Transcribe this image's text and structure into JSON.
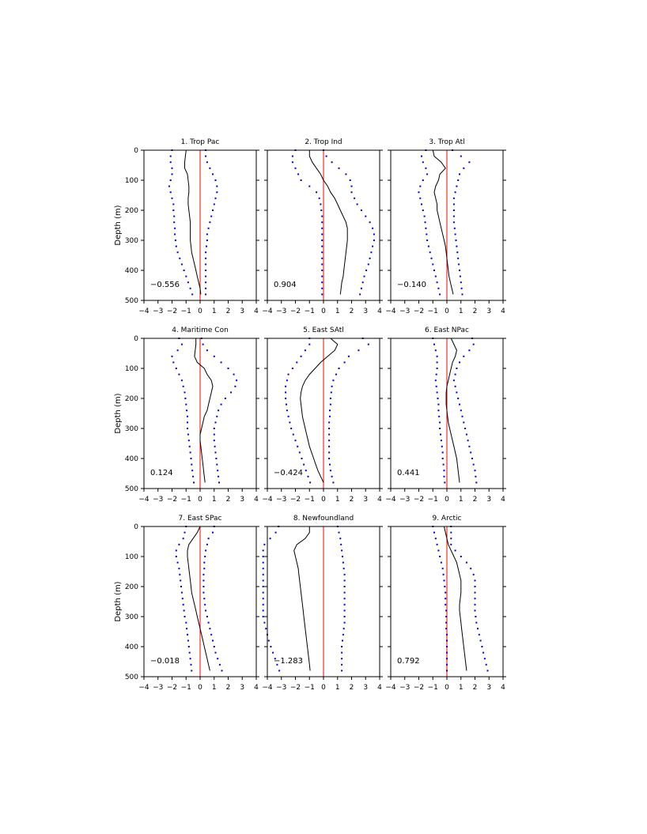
{
  "figure": {
    "ylabel": "Depth (m)",
    "xticks": [
      "−4",
      "−3",
      "−2",
      "−1",
      "0",
      "1",
      "2",
      "3",
      "4"
    ],
    "yticks": [
      "0",
      "100",
      "200",
      "300",
      "400",
      "500"
    ],
    "colors": {
      "mean": "#000000",
      "bounds": "#0000dd",
      "zero": "#ff0000"
    }
  },
  "chart_data": [
    {
      "type": "line",
      "title": "1. Trop Pac",
      "annotation": "−0.556",
      "xlim": [
        -4,
        4
      ],
      "ylim": [
        500,
        0
      ],
      "grid": false,
      "depth": [
        0,
        20,
        40,
        60,
        80,
        100,
        120,
        140,
        160,
        180,
        200,
        220,
        240,
        260,
        280,
        300,
        320,
        340,
        360,
        380,
        400,
        420,
        440,
        460,
        480
      ],
      "series": [
        {
          "role": "mean",
          "x": [
            -1.0,
            -1.05,
            -1.1,
            -1.1,
            -0.9,
            -0.85,
            -0.8,
            -0.8,
            -0.85,
            -0.85,
            -0.8,
            -0.75,
            -0.7,
            -0.7,
            -0.7,
            -0.7,
            -0.65,
            -0.6,
            -0.5,
            -0.4,
            -0.3,
            -0.2,
            -0.1,
            0.0,
            0.05
          ]
        },
        {
          "role": "lower",
          "x": [
            -2.0,
            -2.1,
            -2.1,
            -2.0,
            -2.0,
            -2.1,
            -2.2,
            -2.1,
            -2.0,
            -1.9,
            -1.9,
            -1.85,
            -1.85,
            -1.8,
            -1.8,
            -1.75,
            -1.7,
            -1.6,
            -1.45,
            -1.3,
            -1.15,
            -1.0,
            -0.85,
            -0.7,
            -0.55
          ]
        },
        {
          "role": "upper",
          "x": [
            0.4,
            0.4,
            0.5,
            0.7,
            0.9,
            1.1,
            1.2,
            1.2,
            1.1,
            1.0,
            0.9,
            0.8,
            0.7,
            0.6,
            0.5,
            0.5,
            0.45,
            0.4,
            0.4,
            0.4,
            0.4,
            0.4,
            0.4,
            0.4,
            0.4
          ]
        }
      ]
    },
    {
      "type": "line",
      "title": "2. Trop Ind",
      "annotation": "0.904",
      "xlim": [
        -4,
        4
      ],
      "ylim": [
        500,
        0
      ],
      "grid": false,
      "depth": [
        0,
        20,
        40,
        60,
        80,
        100,
        120,
        140,
        160,
        180,
        200,
        220,
        240,
        260,
        280,
        300,
        320,
        340,
        360,
        380,
        400,
        420,
        440,
        460,
        480
      ],
      "series": [
        {
          "role": "mean",
          "x": [
            -1.0,
            -1.0,
            -0.8,
            -0.5,
            -0.2,
            0.0,
            0.3,
            0.5,
            0.8,
            1.0,
            1.2,
            1.4,
            1.6,
            1.7,
            1.7,
            1.7,
            1.65,
            1.6,
            1.55,
            1.5,
            1.45,
            1.4,
            1.3,
            1.25,
            1.2
          ]
        },
        {
          "role": "lower",
          "x": [
            -2.0,
            -2.2,
            -2.2,
            -2.0,
            -1.8,
            -1.6,
            -1.0,
            -0.5,
            -0.3,
            -0.2,
            -0.15,
            -0.1,
            -0.1,
            -0.1,
            -0.1,
            -0.1,
            -0.1,
            -0.1,
            -0.1,
            -0.1,
            -0.1,
            -0.1,
            -0.1,
            -0.1,
            -0.1
          ]
        },
        {
          "role": "upper",
          "x": [
            0.0,
            0.2,
            0.6,
            1.1,
            1.6,
            1.9,
            2.0,
            2.0,
            2.2,
            2.4,
            2.7,
            3.0,
            3.3,
            3.5,
            3.6,
            3.6,
            3.5,
            3.4,
            3.3,
            3.2,
            3.05,
            2.9,
            2.8,
            2.7,
            2.6
          ]
        }
      ]
    },
    {
      "type": "line",
      "title": "3. Trop Atl",
      "annotation": "−0.140",
      "xlim": [
        -4,
        4
      ],
      "ylim": [
        500,
        0
      ],
      "grid": false,
      "depth": [
        0,
        20,
        40,
        60,
        80,
        100,
        120,
        140,
        160,
        180,
        200,
        220,
        240,
        260,
        280,
        300,
        320,
        340,
        360,
        380,
        400,
        420,
        440,
        460,
        480
      ],
      "series": [
        {
          "role": "mean",
          "x": [
            -1.0,
            -0.9,
            -0.4,
            -0.1,
            -0.5,
            -0.6,
            -0.8,
            -0.9,
            -0.8,
            -0.7,
            -0.7,
            -0.6,
            -0.5,
            -0.4,
            -0.3,
            -0.2,
            -0.1,
            -0.05,
            0.0,
            0.05,
            0.1,
            0.15,
            0.25,
            0.35,
            0.45
          ]
        },
        {
          "role": "lower",
          "x": [
            -1.5,
            -1.8,
            -1.7,
            -1.5,
            -1.4,
            -1.7,
            -1.9,
            -2.0,
            -1.9,
            -1.8,
            -1.7,
            -1.6,
            -1.55,
            -1.5,
            -1.45,
            -1.4,
            -1.3,
            -1.2,
            -1.1,
            -1.0,
            -0.9,
            -0.8,
            -0.7,
            -0.6,
            -0.5
          ]
        },
        {
          "role": "upper",
          "x": [
            0.4,
            1.0,
            1.6,
            1.2,
            0.9,
            0.8,
            0.7,
            0.6,
            0.5,
            0.5,
            0.5,
            0.5,
            0.5,
            0.55,
            0.6,
            0.65,
            0.7,
            0.75,
            0.8,
            0.85,
            0.9,
            0.95,
            1.0,
            1.05,
            1.1
          ]
        }
      ]
    },
    {
      "type": "line",
      "title": "4. Maritime Con",
      "annotation": "0.124",
      "xlim": [
        -4,
        4
      ],
      "ylim": [
        500,
        0
      ],
      "grid": false,
      "depth": [
        0,
        20,
        40,
        60,
        80,
        100,
        120,
        140,
        160,
        180,
        200,
        220,
        240,
        260,
        280,
        300,
        320,
        340,
        360,
        380,
        400,
        420,
        440,
        460,
        480
      ],
      "series": [
        {
          "role": "mean",
          "x": [
            -0.3,
            -0.3,
            -0.35,
            -0.4,
            -0.2,
            0.3,
            0.5,
            0.8,
            0.9,
            0.8,
            0.7,
            0.6,
            0.5,
            0.3,
            0.2,
            0.1,
            0.0,
            0.0,
            0.05,
            0.1,
            0.15,
            0.2,
            0.25,
            0.3,
            0.35
          ]
        },
        {
          "role": "lower",
          "x": [
            -1.5,
            -1.3,
            -1.6,
            -2.0,
            -1.9,
            -1.7,
            -1.5,
            -1.3,
            -1.2,
            -1.1,
            -1.05,
            -1.0,
            -0.95,
            -0.9,
            -0.9,
            -0.9,
            -0.85,
            -0.8,
            -0.75,
            -0.7,
            -0.65,
            -0.6,
            -0.55,
            -0.5,
            -0.45
          ]
        },
        {
          "role": "upper",
          "x": [
            0.1,
            0.2,
            0.5,
            1.0,
            1.5,
            2.0,
            2.4,
            2.6,
            2.5,
            2.2,
            1.8,
            1.5,
            1.3,
            1.2,
            1.1,
            1.0,
            1.0,
            1.0,
            1.05,
            1.1,
            1.15,
            1.2,
            1.25,
            1.3,
            1.35
          ]
        }
      ]
    },
    {
      "type": "line",
      "title": "5. East SAtl",
      "annotation": "−0.424",
      "xlim": [
        -4,
        4
      ],
      "ylim": [
        500,
        0
      ],
      "grid": false,
      "depth": [
        0,
        20,
        40,
        60,
        80,
        100,
        120,
        140,
        160,
        180,
        200,
        220,
        240,
        260,
        280,
        300,
        320,
        340,
        360,
        380,
        400,
        420,
        440,
        460,
        480
      ],
      "series": [
        {
          "role": "mean",
          "x": [
            0.5,
            1.0,
            0.8,
            0.3,
            -0.2,
            -0.6,
            -1.0,
            -1.3,
            -1.5,
            -1.6,
            -1.65,
            -1.6,
            -1.55,
            -1.5,
            -1.4,
            -1.3,
            -1.2,
            -1.1,
            -1.0,
            -0.85,
            -0.7,
            -0.55,
            -0.4,
            -0.2,
            0.0
          ]
        },
        {
          "role": "lower",
          "x": [
            -1.0,
            -1.0,
            -1.3,
            -1.6,
            -1.9,
            -2.2,
            -2.5,
            -2.6,
            -2.7,
            -2.7,
            -2.7,
            -2.65,
            -2.6,
            -2.5,
            -2.4,
            -2.3,
            -2.15,
            -2.0,
            -1.85,
            -1.7,
            -1.55,
            -1.4,
            -1.25,
            -1.1,
            -0.95
          ]
        },
        {
          "role": "upper",
          "x": [
            2.8,
            3.2,
            2.5,
            1.8,
            1.5,
            1.1,
            0.9,
            0.7,
            0.6,
            0.55,
            0.5,
            0.5,
            0.45,
            0.45,
            0.4,
            0.4,
            0.4,
            0.4,
            0.4,
            0.4,
            0.4,
            0.45,
            0.5,
            0.6,
            0.7
          ]
        }
      ]
    },
    {
      "type": "line",
      "title": "6. East NPac",
      "annotation": "0.441",
      "xlim": [
        -4,
        4
      ],
      "ylim": [
        500,
        0
      ],
      "grid": false,
      "depth": [
        0,
        20,
        40,
        60,
        80,
        100,
        120,
        140,
        160,
        180,
        200,
        220,
        240,
        260,
        280,
        300,
        320,
        340,
        360,
        380,
        400,
        420,
        440,
        460,
        480
      ],
      "series": [
        {
          "role": "mean",
          "x": [
            0.3,
            0.5,
            0.7,
            0.6,
            0.4,
            0.3,
            0.2,
            0.1,
            0.0,
            -0.05,
            -0.05,
            -0.05,
            0.0,
            0.05,
            0.1,
            0.2,
            0.3,
            0.4,
            0.5,
            0.6,
            0.7,
            0.75,
            0.8,
            0.85,
            0.9
          ]
        },
        {
          "role": "lower",
          "x": [
            -1.0,
            -0.9,
            -0.8,
            -0.7,
            -0.7,
            -0.7,
            -0.75,
            -0.8,
            -0.75,
            -0.7,
            -0.65,
            -0.6,
            -0.6,
            -0.55,
            -0.5,
            -0.5,
            -0.45,
            -0.4,
            -0.35,
            -0.3,
            -0.3,
            -0.25,
            -0.2,
            -0.2,
            -0.15
          ]
        },
        {
          "role": "upper",
          "x": [
            1.8,
            1.9,
            1.6,
            1.2,
            0.9,
            0.7,
            0.6,
            0.5,
            0.6,
            0.7,
            0.8,
            0.9,
            1.0,
            1.1,
            1.2,
            1.3,
            1.4,
            1.5,
            1.6,
            1.7,
            1.8,
            1.9,
            2.0,
            2.05,
            2.1
          ]
        }
      ]
    },
    {
      "type": "line",
      "title": "7. East SPac",
      "annotation": "−0.018",
      "xlim": [
        -4,
        4
      ],
      "ylim": [
        500,
        0
      ],
      "grid": false,
      "depth": [
        0,
        20,
        40,
        60,
        80,
        100,
        120,
        140,
        160,
        180,
        200,
        220,
        240,
        260,
        280,
        300,
        320,
        340,
        360,
        380,
        400,
        420,
        440,
        460,
        480
      ],
      "series": [
        {
          "role": "mean",
          "x": [
            0.0,
            -0.2,
            -0.5,
            -0.8,
            -0.9,
            -0.9,
            -0.85,
            -0.8,
            -0.75,
            -0.7,
            -0.65,
            -0.6,
            -0.5,
            -0.4,
            -0.3,
            -0.2,
            -0.1,
            0.0,
            0.1,
            0.2,
            0.3,
            0.4,
            0.5,
            0.6,
            0.7
          ]
        },
        {
          "role": "lower",
          "x": [
            -1.0,
            -1.1,
            -1.2,
            -1.5,
            -1.7,
            -1.7,
            -1.6,
            -1.5,
            -1.45,
            -1.4,
            -1.35,
            -1.3,
            -1.25,
            -1.2,
            -1.15,
            -1.1,
            -1.0,
            -0.95,
            -0.9,
            -0.85,
            -0.8,
            -0.75,
            -0.7,
            -0.65,
            -0.6
          ]
        },
        {
          "role": "upper",
          "x": [
            1.0,
            0.9,
            0.6,
            0.5,
            0.4,
            0.35,
            0.3,
            0.3,
            0.25,
            0.25,
            0.25,
            0.25,
            0.3,
            0.35,
            0.4,
            0.5,
            0.6,
            0.7,
            0.8,
            0.9,
            1.0,
            1.1,
            1.25,
            1.4,
            1.55
          ]
        }
      ]
    },
    {
      "type": "line",
      "title": "8. Newfoundland",
      "annotation": "−1.283",
      "xlim": [
        -4,
        4
      ],
      "ylim": [
        500,
        0
      ],
      "grid": false,
      "depth": [
        0,
        20,
        40,
        60,
        80,
        100,
        120,
        140,
        160,
        180,
        200,
        220,
        240,
        260,
        280,
        300,
        320,
        340,
        360,
        380,
        400,
        420,
        440,
        460,
        480
      ],
      "series": [
        {
          "role": "mean",
          "x": [
            -1.0,
            -1.0,
            -1.3,
            -1.9,
            -2.1,
            -2.0,
            -1.9,
            -1.8,
            -1.75,
            -1.7,
            -1.65,
            -1.6,
            -1.55,
            -1.5,
            -1.45,
            -1.4,
            -1.35,
            -1.3,
            -1.25,
            -1.2,
            -1.15,
            -1.1,
            -1.05,
            -1.0,
            -0.95
          ]
        },
        {
          "role": "lower",
          "x": [
            -3.2,
            -3.4,
            -3.8,
            -4.2,
            -4.3,
            -4.3,
            -4.3,
            -4.3,
            -4.3,
            -4.3,
            -4.3,
            -4.3,
            -4.3,
            -4.3,
            -4.3,
            -4.3,
            -4.2,
            -4.1,
            -4.0,
            -3.9,
            -3.75,
            -3.6,
            -3.45,
            -3.3,
            -3.15
          ]
        },
        {
          "role": "upper",
          "x": [
            1.0,
            1.1,
            1.2,
            1.25,
            1.3,
            1.35,
            1.4,
            1.45,
            1.5,
            1.5,
            1.5,
            1.5,
            1.5,
            1.5,
            1.5,
            1.5,
            1.5,
            1.45,
            1.4,
            1.35,
            1.3,
            1.3,
            1.3,
            1.3,
            1.3
          ]
        }
      ]
    },
    {
      "type": "line",
      "title": "9. Arctic",
      "annotation": "0.792",
      "xlim": [
        -4,
        4
      ],
      "ylim": [
        500,
        0
      ],
      "grid": false,
      "depth": [
        0,
        20,
        40,
        60,
        80,
        100,
        120,
        140,
        160,
        180,
        200,
        220,
        240,
        260,
        280,
        300,
        320,
        340,
        360,
        380,
        400,
        420,
        440,
        460,
        480
      ],
      "series": [
        {
          "role": "mean",
          "x": [
            -0.2,
            -0.1,
            0.0,
            0.1,
            0.3,
            0.5,
            0.7,
            0.8,
            0.9,
            1.0,
            1.0,
            1.0,
            0.95,
            0.9,
            0.9,
            0.95,
            1.0,
            1.05,
            1.1,
            1.15,
            1.2,
            1.25,
            1.3,
            1.35,
            1.4
          ]
        },
        {
          "role": "lower",
          "x": [
            -1.0,
            -0.9,
            -0.8,
            -0.7,
            -0.6,
            -0.5,
            -0.4,
            -0.3,
            -0.25,
            -0.2,
            -0.15,
            -0.1,
            -0.1,
            -0.1,
            -0.05,
            -0.05,
            -0.05,
            -0.05,
            0.0,
            0.0,
            0.0,
            0.0,
            0.0,
            0.0,
            0.0
          ]
        },
        {
          "role": "upper",
          "x": [
            0.3,
            0.3,
            0.3,
            0.3,
            0.6,
            1.0,
            1.4,
            1.7,
            1.9,
            2.0,
            2.0,
            2.0,
            2.0,
            2.0,
            2.0,
            2.05,
            2.1,
            2.2,
            2.3,
            2.4,
            2.5,
            2.6,
            2.7,
            2.8,
            2.9
          ]
        }
      ]
    }
  ]
}
